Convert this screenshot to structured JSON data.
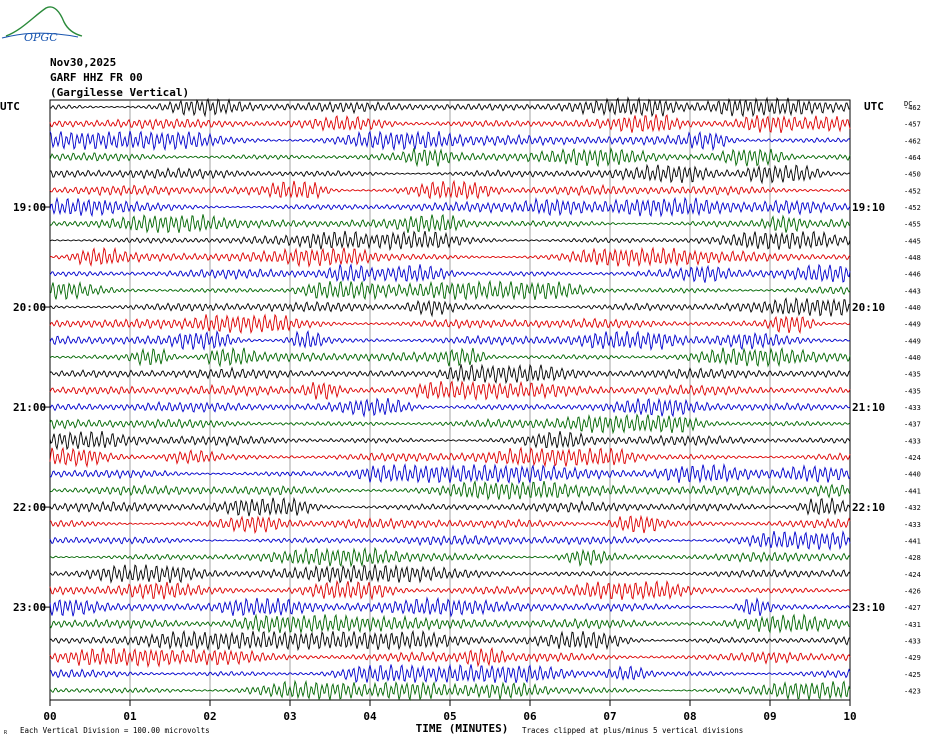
{
  "logo": {
    "text": "OPGC",
    "color": "#2a8a3a",
    "text_color": "#1a56b0"
  },
  "header": {
    "date": "Nov30,2025",
    "station": "GARF HHZ FR 00",
    "location": "(Gargilesse Vertical)"
  },
  "chart_data": {
    "type": "line",
    "title": "",
    "left_axis_label": "UTC",
    "right_axis_label": "UTC",
    "dc_label": "DC",
    "xlabel": "TIME (MINUTES)",
    "xlim": [
      0,
      10
    ],
    "x_ticks": [
      "00",
      "01",
      "02",
      "03",
      "04",
      "05",
      "06",
      "07",
      "08",
      "09",
      "10"
    ],
    "left_hour_labels": [
      {
        "row": 6,
        "label": "19:00"
      },
      {
        "row": 12,
        "label": "20:00"
      },
      {
        "row": 18,
        "label": "21:00"
      },
      {
        "row": 24,
        "label": "22:00"
      },
      {
        "row": 30,
        "label": "23:00"
      }
    ],
    "right_hour_labels": [
      {
        "row": 6,
        "label": "19:10"
      },
      {
        "row": 12,
        "label": "20:10"
      },
      {
        "row": 18,
        "label": "21:10"
      },
      {
        "row": 24,
        "label": "22:10"
      },
      {
        "row": 30,
        "label": "23:10"
      }
    ],
    "dc_offsets": [
      "-462",
      "-457",
      "-462",
      "-464",
      "-450",
      "-452",
      "-452",
      "-455",
      "-445",
      "-448",
      "-446",
      "-443",
      "-440",
      "-449",
      "-449",
      "-440",
      "-435",
      "-435",
      "-433",
      "-437",
      "-433",
      "-424",
      "-440",
      "-441",
      "-432",
      "-433",
      "-441",
      "-428",
      "-424",
      "-426",
      "-427",
      "-431",
      "-433",
      "-429",
      "-425",
      "-423"
    ],
    "trace_colors": [
      "#000000",
      "#dd0000",
      "#0000cc",
      "#006600"
    ],
    "minutes_per_trace": 10,
    "footer_left": "Each Vertical Division =  100.00 microvolts",
    "footer_right": "Traces clipped at plus/minus 5 vertical divisions",
    "corner_mark": "R"
  }
}
